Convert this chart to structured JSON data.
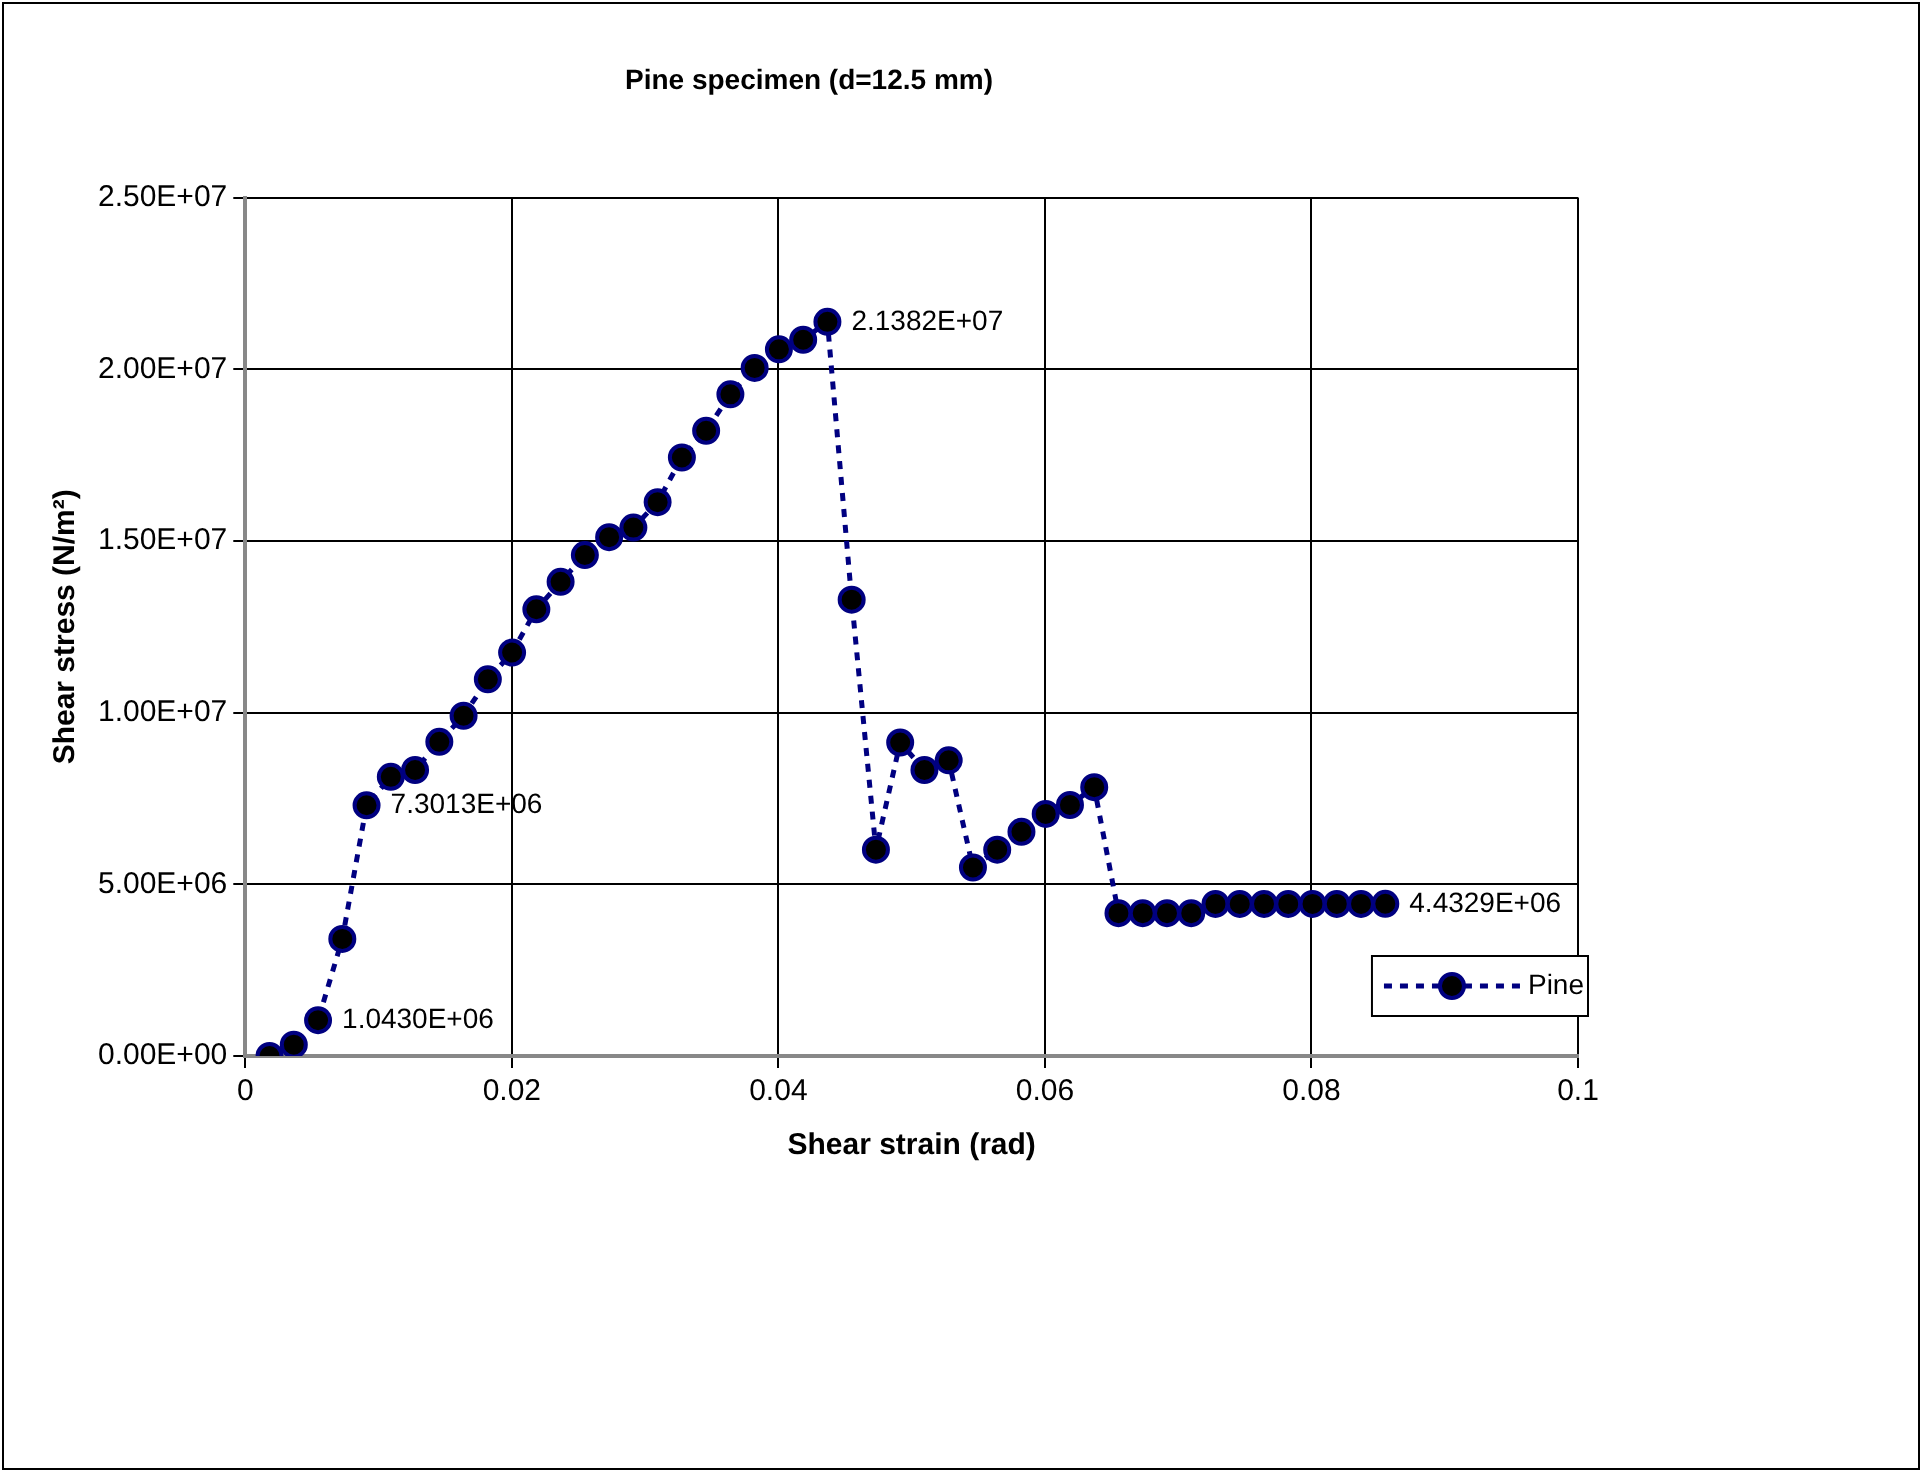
{
  "chart_data": {
    "type": "line",
    "title": "Pine specimen (d=12.5 mm)",
    "xlabel": "Shear strain (rad)",
    "ylabel": "Shear stress (N/m²)",
    "x": [
      0.00182,
      0.00364,
      0.00546,
      0.00728,
      0.0091,
      0.01092,
      0.01274,
      0.01456,
      0.01638,
      0.0182,
      0.02002,
      0.02184,
      0.02366,
      0.02548,
      0.0273,
      0.02912,
      0.03094,
      0.03276,
      0.03458,
      0.0364,
      0.03822,
      0.04004,
      0.04186,
      0.04368,
      0.0455,
      0.04732,
      0.04914,
      0.05096,
      0.05278,
      0.0546,
      0.05642,
      0.05824,
      0.06006,
      0.06188,
      0.0637,
      0.06552,
      0.06734,
      0.06916,
      0.07098,
      0.0728,
      0.07462,
      0.07644,
      0.07826,
      0.08008,
      0.0819,
      0.08372,
      0.08554
    ],
    "series": [
      {
        "name": "Pine",
        "color": "#000080",
        "values": [
          0,
          330000,
          1043000,
          3410000,
          7301300,
          8130000,
          8330000,
          9150000,
          9910000,
          10970000,
          11750000,
          13010000,
          13810000,
          14590000,
          15110000,
          15390000,
          16130000,
          17430000,
          18210000,
          19270000,
          20040000,
          20580000,
          20860000,
          21382000,
          13290000,
          6010000,
          9130000,
          8330000,
          8610000,
          5490000,
          6010000,
          6530000,
          7050000,
          7310000,
          7830000,
          4160000,
          4160000,
          4160000,
          4160000,
          4430000,
          4430000,
          4430000,
          4430000,
          4430000,
          4430000,
          4430000,
          4432900
        ],
        "value_labels": [
          null,
          null,
          "1.0430E+06",
          null,
          "7.3013E+06",
          null,
          null,
          null,
          null,
          null,
          null,
          null,
          null,
          null,
          null,
          null,
          null,
          null,
          null,
          null,
          null,
          null,
          null,
          "2.1382E+07",
          null,
          null,
          null,
          null,
          null,
          null,
          null,
          null,
          null,
          null,
          null,
          null,
          null,
          null,
          null,
          null,
          null,
          null,
          null,
          null,
          null,
          null,
          "4.4329E+06"
        ]
      }
    ],
    "xlim": [
      0,
      0.1
    ],
    "xticks": [
      0,
      0.02,
      0.04,
      0.06,
      0.08,
      0.1
    ],
    "ylim": [
      0,
      25000000
    ],
    "yticks": [
      {
        "value": 0,
        "label": "0.00E+00"
      },
      {
        "value": 5000000,
        "label": "5.00E+06"
      },
      {
        "value": 10000000,
        "label": "1.00E+07"
      },
      {
        "value": 15000000,
        "label": "1.50E+07"
      },
      {
        "value": 20000000,
        "label": "2.00E+07"
      },
      {
        "value": 25000000,
        "label": "2.50E+07"
      }
    ],
    "grid": true,
    "legend": "bottom right",
    "marker": "circle",
    "line_style": "dashed"
  }
}
